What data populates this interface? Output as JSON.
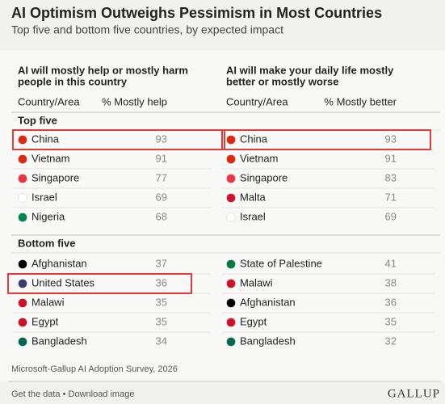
{
  "header": {
    "title": "AI Optimism Outweighs Pessimism in Most Countries",
    "subtitle": "Top five and bottom five countries, by expected impact"
  },
  "table": {
    "sections": [
      "Top five",
      "Bottom five"
    ],
    "panels": [
      {
        "heading": [
          "AI will mostly help or mostly harm",
          "people in this country"
        ],
        "columns": [
          "Country/Area",
          "% Mostly help"
        ],
        "groups": [
          [
            [
              "China",
              93
            ],
            [
              "Vietnam",
              91
            ],
            [
              "Singapore",
              77
            ],
            [
              "Israel",
              69
            ],
            [
              "Nigeria",
              68
            ]
          ],
          [
            [
              "Afghanistan",
              37
            ],
            [
              "United States",
              36
            ],
            [
              "Malawi",
              35
            ],
            [
              "Egypt",
              35
            ],
            [
              "Bangladesh",
              34
            ]
          ]
        ]
      },
      {
        "heading": [
          "AI will make your daily life mostly",
          "better or mostly worse"
        ],
        "columns": [
          "Country/Area",
          "% Mostly better"
        ],
        "groups": [
          [
            [
              "China",
              93
            ],
            [
              "Vietnam",
              91
            ],
            [
              "Singapore",
              83
            ],
            [
              "Malta",
              71
            ],
            [
              "Israel",
              69
            ]
          ],
          [
            [
              "State of Palestine",
              41
            ],
            [
              "Malawi",
              38
            ],
            [
              "Afghanistan",
              36
            ],
            [
              "Egypt",
              35
            ],
            [
              "Bangladesh",
              32
            ]
          ]
        ]
      }
    ]
  },
  "footer": {
    "source": "Microsoft-Gallup AI Adoption Survey, 2026",
    "links": "Get the data • Download image",
    "brand": "GALLUP"
  }
}
